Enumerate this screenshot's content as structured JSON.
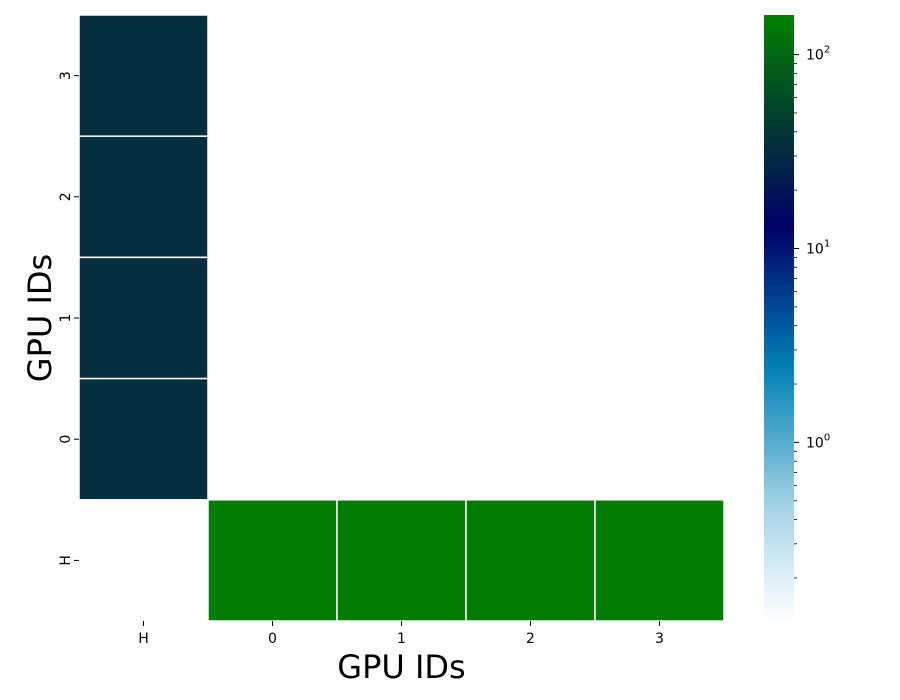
{
  "chart_data": {
    "type": "heatmap",
    "xlabel": "GPU IDs",
    "ylabel": "GPU IDs",
    "x_categories": [
      "H",
      "0",
      "1",
      "2",
      "3"
    ],
    "y_categories": [
      "3",
      "2",
      "1",
      "0",
      "H"
    ],
    "cells": [
      {
        "x": "H",
        "y": "3",
        "value": 35
      },
      {
        "x": "H",
        "y": "2",
        "value": 35
      },
      {
        "x": "H",
        "y": "1",
        "value": 35
      },
      {
        "x": "H",
        "y": "0",
        "value": 35
      },
      {
        "x": "0",
        "y": "H",
        "value": 150
      },
      {
        "x": "1",
        "y": "H",
        "value": 150
      },
      {
        "x": "2",
        "y": "H",
        "value": 150
      },
      {
        "x": "3",
        "y": "H",
        "value": 150
      }
    ],
    "empty_cells": "unset cells are blank (no transfer)",
    "colorbar": {
      "scale": "log",
      "range": [
        0.12,
        160
      ],
      "ticks": [
        {
          "base": "10",
          "exp": "0",
          "value": 1
        },
        {
          "base": "10",
          "exp": "1",
          "value": 10
        },
        {
          "base": "10",
          "exp": "2",
          "value": 100
        }
      ],
      "colormap": [
        "#ffffff",
        "#0080b3",
        "#00005a",
        "#007f00"
      ]
    },
    "grid": false
  }
}
